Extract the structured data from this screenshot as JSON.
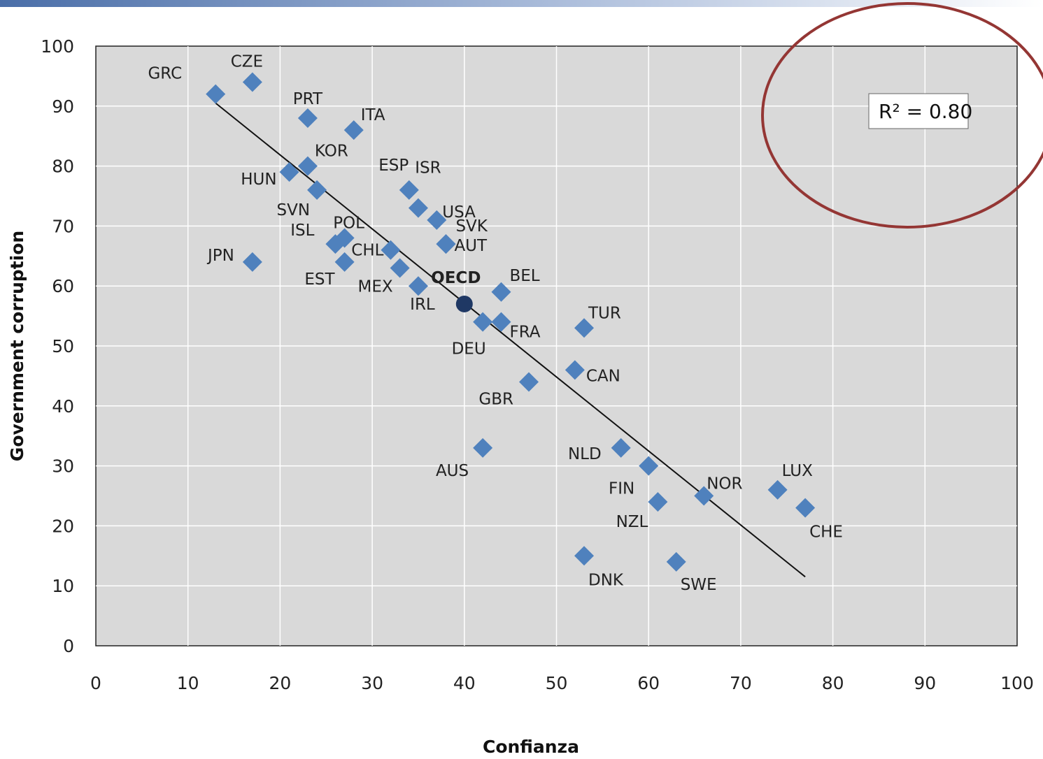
{
  "chart_data": {
    "type": "scatter",
    "title": "",
    "xlabel": "Confianza",
    "ylabel": "Government corruption",
    "xlim": [
      0,
      100
    ],
    "ylim": [
      0,
      100
    ],
    "x_ticks": [
      0,
      10,
      20,
      30,
      40,
      50,
      60,
      70,
      80,
      90,
      100
    ],
    "y_ticks": [
      0,
      10,
      20,
      30,
      40,
      50,
      60,
      70,
      80,
      90,
      100
    ],
    "grid": "vertical and horizontal gridlines",
    "annotation": {
      "r2_text": "R² = 0.80",
      "highlight": "circled top-right"
    },
    "trendline": {
      "from": [
        13,
        90.5
      ],
      "to": [
        77,
        11.5
      ]
    },
    "colors": {
      "marker": "#4f81bd",
      "oecd_marker": "#1f3864",
      "plot_bg": "#d9d9d9",
      "circle": "#943634"
    },
    "points": [
      {
        "label": "GRC",
        "x": 13,
        "y": 92
      },
      {
        "label": "CZE",
        "x": 17,
        "y": 94
      },
      {
        "label": "PRT",
        "x": 23,
        "y": 88
      },
      {
        "label": "ITA",
        "x": 28,
        "y": 86
      },
      {
        "label": "KOR",
        "x": 23,
        "y": 80
      },
      {
        "label": "HUN",
        "x": 21,
        "y": 79
      },
      {
        "label": "SVN",
        "x": 24,
        "y": 76
      },
      {
        "label": "ESP",
        "x": 34,
        "y": 76
      },
      {
        "label": "ISR",
        "x": 35,
        "y": 73
      },
      {
        "label": "USA",
        "x": 37,
        "y": 71
      },
      {
        "label": "SVK",
        "x": 38,
        "y": 67
      },
      {
        "label": "AUT",
        "x": 38,
        "y": 67
      },
      {
        "label": "POL",
        "x": 27,
        "y": 68
      },
      {
        "label": "ISL",
        "x": 26,
        "y": 67
      },
      {
        "label": "JPN",
        "x": 17,
        "y": 64
      },
      {
        "label": "EST",
        "x": 27,
        "y": 64
      },
      {
        "label": "CHL",
        "x": 32,
        "y": 66
      },
      {
        "label": "MEX",
        "x": 33,
        "y": 63
      },
      {
        "label": "IRL",
        "x": 35,
        "y": 60
      },
      {
        "label": "OECD",
        "x": 40,
        "y": 57,
        "is_average": true
      },
      {
        "label": "BEL",
        "x": 44,
        "y": 59
      },
      {
        "label": "DEU",
        "x": 42,
        "y": 54
      },
      {
        "label": "FRA",
        "x": 44,
        "y": 54
      },
      {
        "label": "TUR",
        "x": 53,
        "y": 53
      },
      {
        "label": "CAN",
        "x": 52,
        "y": 46
      },
      {
        "label": "GBR",
        "x": 47,
        "y": 44
      },
      {
        "label": "AUS",
        "x": 42,
        "y": 33
      },
      {
        "label": "NLD",
        "x": 57,
        "y": 33
      },
      {
        "label": "FIN",
        "x": 60,
        "y": 30
      },
      {
        "label": "NZL",
        "x": 61,
        "y": 24
      },
      {
        "label": "NOR",
        "x": 66,
        "y": 25
      },
      {
        "label": "LUX",
        "x": 74,
        "y": 26
      },
      {
        "label": "CHE",
        "x": 77,
        "y": 23
      },
      {
        "label": "DNK",
        "x": 53,
        "y": 15
      },
      {
        "label": "SWE",
        "x": 63,
        "y": 14
      }
    ]
  }
}
